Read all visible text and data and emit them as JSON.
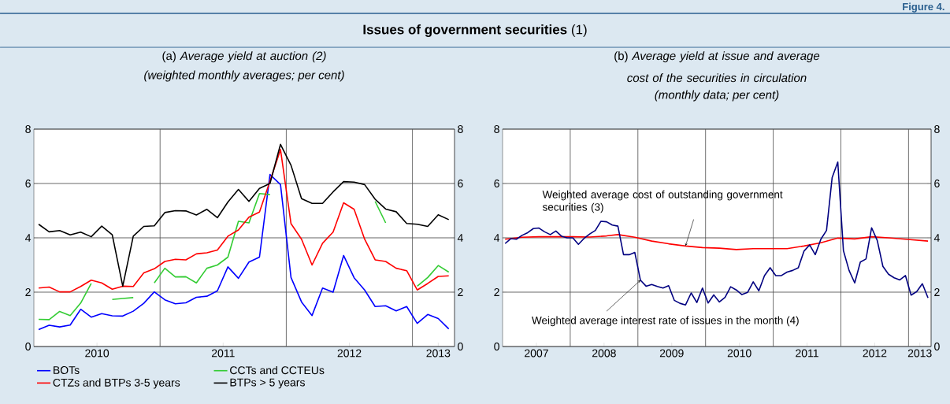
{
  "chart_data": [
    {
      "type": "other",
      "title": "**Issues of government securities** (1)",
      "annotations": [
        "Figure 4."
      ]
    },
    {
      "type": "line",
      "title": "(a) *Average yield at auction (2)*",
      "subtitle": "(weighted monthly averages; per cent)",
      "x": [
        "2010-01-15",
        "2010-02-15",
        "2010-03-15",
        "2010-04-15",
        "2010-05-15",
        "2010-06-15",
        "2010-07-15",
        "2010-08-15",
        "2010-09-15",
        "2010-10-15",
        "2010-11-15",
        "2010-12-15",
        "2011-01-15",
        "2011-02-15",
        "2011-03-15",
        "2011-04-15",
        "2011-05-15",
        "2011-06-15",
        "2011-07-15",
        "2011-08-15",
        "2011-09-15",
        "2011-10-15",
        "2011-11-15",
        "2011-12-15",
        "2012-01-15",
        "2012-02-15",
        "2012-03-15",
        "2012-04-15",
        "2012-05-15",
        "2012-06-15",
        "2012-07-15",
        "2012-08-15",
        "2012-09-15",
        "2012-10-15",
        "2012-11-15",
        "2012-12-15",
        "2013-01-15",
        "2013-02-15",
        "2013-03-15",
        "2013-04-15"
      ],
      "series": [
        {
          "name": "BOTs",
          "color": "#0000ff",
          "values": [
            0.62,
            0.78,
            0.72,
            0.79,
            1.37,
            1.08,
            1.21,
            1.13,
            1.12,
            1.3,
            1.59,
            2.01,
            1.72,
            1.57,
            1.61,
            1.81,
            1.85,
            2.05,
            2.93,
            2.51,
            3.11,
            3.29,
            6.33,
            5.96,
            2.54,
            1.64,
            1.14,
            2.15,
            2.0,
            3.35,
            2.53,
            2.08,
            1.47,
            1.5,
            1.31,
            1.47,
            0.85,
            1.18,
            1.03,
            0.65
          ]
        },
        {
          "name": "CCTs and CCTEUs",
          "color": "#33cc33",
          "values": [
            1.0,
            0.99,
            1.29,
            1.14,
            1.6,
            2.32,
            null,
            1.73,
            1.77,
            1.8,
            null,
            2.34,
            2.88,
            2.56,
            2.57,
            2.34,
            2.88,
            3.0,
            3.29,
            4.61,
            4.55,
            5.63,
            5.59,
            null,
            null,
            null,
            null,
            null,
            null,
            null,
            null,
            null,
            5.34,
            4.55,
            null,
            null,
            2.22,
            2.54,
            2.98,
            2.74
          ]
        },
        {
          "name": "CTZs and BTPs 3-5 years",
          "color": "#ff0000",
          "values": [
            2.15,
            2.19,
            2.01,
            2.01,
            2.21,
            2.44,
            2.34,
            2.11,
            2.22,
            2.21,
            2.71,
            2.86,
            3.13,
            3.21,
            3.19,
            3.41,
            3.45,
            3.55,
            4.06,
            4.29,
            4.76,
            4.95,
            6.09,
            7.25,
            4.52,
            3.95,
            3.0,
            3.8,
            4.21,
            5.29,
            5.05,
            3.95,
            3.19,
            3.13,
            2.88,
            2.79,
            2.08,
            2.32,
            2.58,
            2.6
          ]
        },
        {
          "name": "BTPs > 5 years",
          "color": "#000000",
          "values": [
            4.5,
            4.22,
            4.27,
            4.11,
            4.21,
            4.04,
            4.43,
            4.11,
            2.22,
            4.06,
            4.42,
            4.44,
            4.93,
            5.0,
            4.99,
            4.84,
            5.05,
            4.74,
            5.32,
            5.78,
            5.34,
            5.82,
            6.0,
            7.44,
            6.67,
            5.44,
            5.27,
            5.27,
            5.69,
            6.07,
            6.05,
            5.96,
            5.42,
            5.06,
            4.96,
            4.53,
            4.5,
            4.42,
            4.85,
            4.67
          ]
        }
      ],
      "xlim": [
        "2010-01-01",
        "2013-05-01"
      ],
      "xticks": [
        {
          "value": "2010-07-01",
          "label": "2010"
        },
        {
          "value": "2011-01-01",
          "label": null
        },
        {
          "value": "2011-07-01",
          "label": "2011"
        },
        {
          "value": "2012-01-01",
          "label": null
        },
        {
          "value": "2012-07-01",
          "label": "2012"
        },
        {
          "value": "2013-01-01",
          "label": null
        },
        {
          "value": "2013-03-15",
          "label": "2013"
        }
      ],
      "ylim": [
        0,
        8
      ],
      "yticks": [
        0,
        2,
        4,
        6,
        8
      ],
      "y2lim": [
        0,
        8
      ],
      "y2ticks": [
        0,
        2,
        4,
        6,
        8
      ],
      "grid": true,
      "legend": "bottom left"
    },
    {
      "type": "line",
      "title": "(b) *Average yield at issue and average cost of the securities in circulation*",
      "subtitle": "(monthly data; per cent)",
      "x": [
        "2007-01-15",
        "2007-02-15",
        "2007-03-15",
        "2007-04-15",
        "2007-05-15",
        "2007-06-15",
        "2007-07-15",
        "2007-08-15",
        "2007-09-15",
        "2007-10-15",
        "2007-11-15",
        "2007-12-15",
        "2008-01-15",
        "2008-02-15",
        "2008-03-15",
        "2008-04-15",
        "2008-05-15",
        "2008-06-15",
        "2008-07-15",
        "2008-08-15",
        "2008-09-15",
        "2008-10-15",
        "2008-11-15",
        "2008-12-15",
        "2009-01-15",
        "2009-02-15",
        "2009-03-15",
        "2009-04-15",
        "2009-05-15",
        "2009-06-15",
        "2009-07-15",
        "2009-08-15",
        "2009-09-15",
        "2009-10-15",
        "2009-11-15",
        "2009-12-15",
        "2010-01-15",
        "2010-02-15",
        "2010-03-15",
        "2010-04-15",
        "2010-05-15",
        "2010-06-15",
        "2010-07-15",
        "2010-08-15",
        "2010-09-15",
        "2010-10-15",
        "2010-11-15",
        "2010-12-15",
        "2011-01-15",
        "2011-02-15",
        "2011-03-15",
        "2011-04-15",
        "2011-05-15",
        "2011-06-15",
        "2011-07-15",
        "2011-08-15",
        "2011-09-15",
        "2011-10-15",
        "2011-11-15",
        "2011-12-15",
        "2012-01-15",
        "2012-02-15",
        "2012-03-15",
        "2012-04-15",
        "2012-05-15",
        "2012-06-15",
        "2012-07-15",
        "2012-08-15",
        "2012-09-15",
        "2012-10-15",
        "2012-11-15",
        "2012-12-15",
        "2013-01-15",
        "2013-02-15",
        "2013-03-15",
        "2013-04-15"
      ],
      "series": [
        {
          "color": "#ff0000",
          "x": [
            "2007-01-15",
            "2007-04-15",
            "2007-07-15",
            "2007-10-15",
            "2008-01-15",
            "2008-04-15",
            "2008-07-15",
            "2008-09-15",
            "2008-12-15",
            "2009-03-15",
            "2009-06-15",
            "2009-09-15",
            "2009-12-15",
            "2010-03-15",
            "2010-06-15",
            "2010-09-15",
            "2010-12-15",
            "2011-03-15",
            "2011-06-15",
            "2011-09-15",
            "2011-12-15",
            "2012-03-15",
            "2012-06-15",
            "2012-09-15",
            "2012-12-15",
            "2013-04-15"
          ],
          "values": [
            3.95,
            4.02,
            4.04,
            4.04,
            4.04,
            4.03,
            4.07,
            4.12,
            4.02,
            3.88,
            3.78,
            3.7,
            3.64,
            3.62,
            3.57,
            3.6,
            3.6,
            3.6,
            3.7,
            3.82,
            3.99,
            3.96,
            4.04,
            4.0,
            3.95,
            3.88
          ]
        },
        {
          "color": "#000080",
          "values": [
            3.79,
            3.97,
            3.95,
            4.09,
            4.19,
            4.34,
            4.36,
            4.22,
            4.12,
            4.25,
            4.06,
            4.0,
            4.0,
            3.76,
            3.98,
            4.14,
            4.27,
            4.61,
            4.59,
            4.47,
            4.43,
            3.38,
            3.38,
            3.46,
            2.44,
            2.22,
            2.28,
            2.21,
            2.15,
            2.24,
            1.7,
            1.59,
            1.53,
            1.97,
            1.62,
            2.15,
            1.6,
            1.9,
            1.64,
            1.81,
            2.2,
            2.08,
            1.91,
            1.99,
            2.38,
            2.05,
            2.61,
            2.9,
            2.61,
            2.61,
            2.74,
            2.8,
            2.9,
            3.51,
            3.74,
            3.38,
            3.95,
            4.27,
            6.22,
            6.79,
            3.53,
            2.8,
            2.34,
            3.11,
            3.22,
            4.37,
            3.9,
            2.95,
            2.66,
            2.53,
            2.45,
            2.61,
            1.89,
            2.02,
            2.31,
            1.79
          ]
        }
      ],
      "xlim": [
        "2007-01-01",
        "2013-05-01"
      ],
      "xticks": [
        {
          "value": "2007-07-01",
          "label": "2007"
        },
        {
          "value": "2008-01-01",
          "label": null
        },
        {
          "value": "2008-07-01",
          "label": "2008"
        },
        {
          "value": "2009-01-01",
          "label": null
        },
        {
          "value": "2009-07-01",
          "label": "2009"
        },
        {
          "value": "2010-01-01",
          "label": null
        },
        {
          "value": "2010-07-01",
          "label": "2010"
        },
        {
          "value": "2011-01-01",
          "label": null
        },
        {
          "value": "2011-07-01",
          "label": "2011"
        },
        {
          "value": "2012-01-01",
          "label": null
        },
        {
          "value": "2012-07-01",
          "label": "2012"
        },
        {
          "value": "2013-01-01",
          "label": null
        },
        {
          "value": "2013-03-01",
          "label": "2013"
        }
      ],
      "ylim": [
        0,
        8
      ],
      "yticks": [
        0,
        2,
        4,
        6,
        8
      ],
      "y2lim": [
        0,
        8
      ],
      "y2ticks": [
        0,
        2,
        4,
        6,
        8
      ],
      "grid": true,
      "annotations": [
        {
          "text": "Weighted average cost of outstanding government securities (3)",
          "x": "2009-09-15",
          "y": 3.7
        },
        {
          "text": "Weighted average interest rate of issues in the month (4)",
          "x": "2009-01-15",
          "y": 2.44
        }
      ]
    }
  ]
}
